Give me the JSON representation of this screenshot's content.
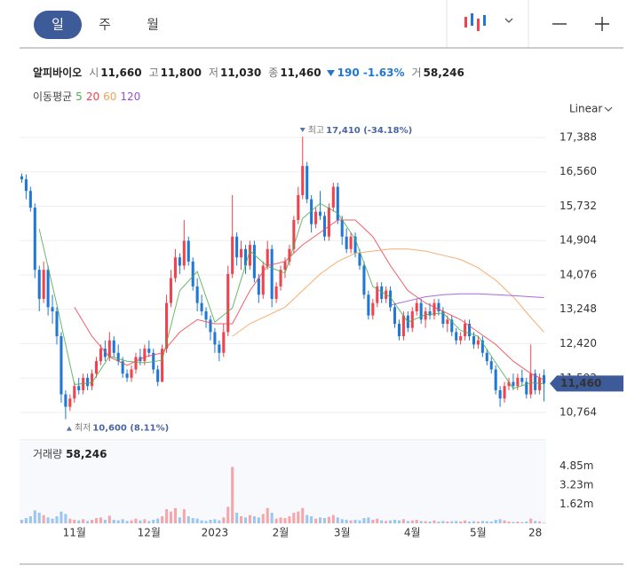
{
  "toolbar": {
    "tabs": [
      "일",
      "주",
      "월"
    ],
    "selected": 0
  },
  "quote": {
    "name": "알피바이오",
    "fields": [
      {
        "label": "시",
        "value": "11,660"
      },
      {
        "label": "고",
        "value": "11,800"
      },
      {
        "label": "저",
        "value": "11,030"
      },
      {
        "label": "종",
        "value": "11,460"
      }
    ],
    "change": "190 -1.63%",
    "volume": {
      "label": "거",
      "value": "58,246"
    }
  },
  "chart_data": {
    "type": "candlestick",
    "ma_label": "이동평균",
    "scale": "Linear",
    "grid": true,
    "up_color": "#f0434e",
    "down_color": "#1f78d6",
    "up_volume_color": "#f4a6aa",
    "down_volume_color": "#9cc6ef",
    "xlim": [
      -0.5,
      119.5
    ],
    "xticks": [
      {
        "value": 12,
        "label": "11월"
      },
      {
        "value": 29,
        "label": "12월"
      },
      {
        "value": 44,
        "label": "2023"
      },
      {
        "value": 59,
        "label": "2월"
      },
      {
        "value": 73,
        "label": "3월"
      },
      {
        "value": 89,
        "label": "4월"
      },
      {
        "value": 104,
        "label": "5월"
      },
      {
        "value": 117,
        "label": "28"
      }
    ],
    "ylim": [
      10230,
      17708
    ],
    "yticks": [
      {
        "value": 17388,
        "label": "17,388"
      },
      {
        "value": 16560,
        "label": "16,560"
      },
      {
        "value": 15732,
        "label": "15,732"
      },
      {
        "value": 14904,
        "label": "14,904"
      },
      {
        "value": 14076,
        "label": "14,076"
      },
      {
        "value": 13248,
        "label": "13,248"
      },
      {
        "value": 12420,
        "label": "12,420"
      },
      {
        "value": 11592,
        "label": "11,592"
      },
      {
        "value": 10764,
        "label": "10,764"
      }
    ],
    "candles": [
      [
        16450,
        16520,
        16300,
        16380
      ],
      [
        16380,
        16500,
        15900,
        16100
      ],
      [
        16100,
        16200,
        15600,
        15700
      ],
      [
        15700,
        15800,
        14000,
        14200
      ],
      [
        14200,
        14300,
        13200,
        13500
      ],
      [
        13500,
        14400,
        13400,
        14200
      ],
      [
        14200,
        14300,
        13100,
        13300
      ],
      [
        13300,
        13600,
        12900,
        13200
      ],
      [
        13200,
        13300,
        12400,
        12600
      ],
      [
        12600,
        12700,
        11000,
        11200
      ],
      [
        11200,
        11300,
        10600,
        10900
      ],
      [
        10900,
        11200,
        10800,
        11100
      ],
      [
        11100,
        11500,
        11000,
        11400
      ],
      [
        11400,
        11600,
        11200,
        11300
      ],
      [
        11300,
        11700,
        11200,
        11600
      ],
      [
        11600,
        11700,
        11300,
        11400
      ],
      [
        11400,
        11800,
        11300,
        11700
      ],
      [
        11700,
        12100,
        11600,
        12000
      ],
      [
        12000,
        12400,
        11900,
        12300
      ],
      [
        12300,
        12500,
        12000,
        12100
      ],
      [
        12100,
        12700,
        12000,
        12500
      ],
      [
        12500,
        12600,
        12100,
        12200
      ],
      [
        12200,
        12400,
        11900,
        12000
      ],
      [
        12000,
        12100,
        11600,
        11700
      ],
      [
        11700,
        11800,
        11500,
        11600
      ],
      [
        11600,
        11900,
        11500,
        11800
      ],
      [
        11800,
        12200,
        11700,
        12100
      ],
      [
        12100,
        12300,
        11900,
        12000
      ],
      [
        12000,
        12400,
        11900,
        12300
      ],
      [
        12300,
        12500,
        12100,
        12200
      ],
      [
        12200,
        12300,
        11700,
        11800
      ],
      [
        11800,
        11900,
        11400,
        11500
      ],
      [
        11500,
        12400,
        11500,
        12300
      ],
      [
        12300,
        13600,
        12200,
        13400
      ],
      [
        13400,
        14200,
        13300,
        14000
      ],
      [
        14000,
        14700,
        13900,
        14500
      ],
      [
        14500,
        14600,
        14100,
        14300
      ],
      [
        14300,
        15400,
        14200,
        14900
      ],
      [
        14900,
        15000,
        14300,
        14400
      ],
      [
        14400,
        14500,
        13700,
        13800
      ],
      [
        13800,
        14000,
        13200,
        13400
      ],
      [
        13400,
        13600,
        13100,
        13200
      ],
      [
        13200,
        13300,
        12800,
        13000
      ],
      [
        13000,
        13100,
        12500,
        12700
      ],
      [
        12700,
        12800,
        12200,
        12400
      ],
      [
        12400,
        12500,
        12000,
        12200
      ],
      [
        12200,
        12900,
        12100,
        12700
      ],
      [
        12700,
        14300,
        12600,
        14100
      ],
      [
        14100,
        16000,
        14000,
        15000
      ],
      [
        15000,
        15100,
        14300,
        14500
      ],
      [
        14500,
        14900,
        14200,
        14700
      ],
      [
        14700,
        14800,
        14100,
        14300
      ],
      [
        14300,
        14900,
        14200,
        14800
      ],
      [
        14800,
        14900,
        13900,
        14000
      ],
      [
        14000,
        14100,
        13400,
        13600
      ],
      [
        13600,
        14400,
        13500,
        14300
      ],
      [
        14300,
        14900,
        14200,
        14700
      ],
      [
        14700,
        14800,
        13300,
        13500
      ],
      [
        13500,
        13900,
        13400,
        13800
      ],
      [
        13800,
        14300,
        13700,
        14200
      ],
      [
        14200,
        14500,
        14000,
        14400
      ],
      [
        14400,
        14800,
        14300,
        14700
      ],
      [
        14700,
        15500,
        14600,
        15400
      ],
      [
        15400,
        16200,
        15300,
        16000
      ],
      [
        16000,
        17410,
        15900,
        16700
      ],
      [
        16700,
        16800,
        15800,
        15900
      ],
      [
        15900,
        16000,
        15100,
        15300
      ],
      [
        15300,
        15700,
        15200,
        15600
      ],
      [
        15600,
        16100,
        15400,
        15500
      ],
      [
        15500,
        15600,
        14900,
        15000
      ],
      [
        15000,
        15800,
        14900,
        15700
      ],
      [
        15700,
        16300,
        15600,
        16200
      ],
      [
        16200,
        16300,
        15300,
        15400
      ],
      [
        15400,
        15500,
        14800,
        15000
      ],
      [
        15000,
        15200,
        14600,
        14700
      ],
      [
        14700,
        15100,
        14600,
        15000
      ],
      [
        15000,
        15100,
        14500,
        14600
      ],
      [
        14600,
        14700,
        14200,
        14300
      ],
      [
        14300,
        14400,
        13500,
        13600
      ],
      [
        13600,
        13700,
        13000,
        13100
      ],
      [
        13100,
        13500,
        13000,
        13400
      ],
      [
        13400,
        13900,
        13300,
        13800
      ],
      [
        13800,
        13900,
        13400,
        13500
      ],
      [
        13500,
        13800,
        13400,
        13700
      ],
      [
        13700,
        13800,
        13200,
        13300
      ],
      [
        13300,
        13400,
        12800,
        12900
      ],
      [
        12900,
        13000,
        12500,
        12600
      ],
      [
        12600,
        13200,
        12500,
        13100
      ],
      [
        13100,
        13200,
        12700,
        12800
      ],
      [
        12800,
        13300,
        12700,
        13200
      ],
      [
        13200,
        13500,
        13100,
        13400
      ],
      [
        13400,
        13500,
        12900,
        13000
      ],
      [
        13000,
        13300,
        12800,
        13200
      ],
      [
        13200,
        13400,
        13000,
        13100
      ],
      [
        13100,
        13500,
        13000,
        13400
      ],
      [
        13400,
        13500,
        13100,
        13200
      ],
      [
        13200,
        13300,
        12800,
        12900
      ],
      [
        12900,
        13100,
        12700,
        13000
      ],
      [
        13000,
        13100,
        12600,
        12700
      ],
      [
        12700,
        12800,
        12400,
        12500
      ],
      [
        12500,
        12700,
        12400,
        12600
      ],
      [
        12600,
        13000,
        12500,
        12900
      ],
      [
        12900,
        13000,
        12500,
        12600
      ],
      [
        12600,
        12700,
        12300,
        12400
      ],
      [
        12400,
        12600,
        12300,
        12500
      ],
      [
        12500,
        12600,
        12100,
        12200
      ],
      [
        12200,
        12300,
        11900,
        12000
      ],
      [
        12000,
        12100,
        11700,
        11800
      ],
      [
        11800,
        11900,
        11200,
        11300
      ],
      [
        11300,
        11400,
        10900,
        11100
      ],
      [
        11100,
        11500,
        11000,
        11400
      ],
      [
        11400,
        11600,
        11300,
        11500
      ],
      [
        11500,
        11700,
        11300,
        11400
      ],
      [
        11400,
        11700,
        11300,
        11600
      ],
      [
        11600,
        11800,
        11400,
        11500
      ],
      [
        11500,
        11600,
        11100,
        11200
      ],
      [
        11200,
        12400,
        11100,
        11700
      ],
      [
        11700,
        11800,
        11200,
        11300
      ],
      [
        11300,
        11700,
        11200,
        11600
      ],
      [
        11660,
        11800,
        11030,
        11460
      ]
    ],
    "moving_averages": [
      {
        "name": "5",
        "color": "#4caf50",
        "x": [
          4,
          8,
          12,
          16,
          20,
          24,
          28,
          32,
          36,
          40,
          44,
          48,
          52,
          56,
          60,
          64,
          68,
          72,
          76,
          80,
          84,
          88,
          92,
          96,
          100,
          104,
          108,
          112,
          116,
          119
        ],
        "values": [
          15180,
          13360,
          11440,
          11480,
          12120,
          12000,
          11960,
          12020,
          13700,
          14160,
          12940,
          13280,
          14660,
          14280,
          14120,
          15440,
          15800,
          15560,
          14940,
          13800,
          13540,
          12940,
          13120,
          13160,
          12740,
          12600,
          11960,
          11340,
          11480,
          11452
        ]
      },
      {
        "name": "20",
        "color": "#f0434e",
        "x": [
          12,
          16,
          20,
          24,
          28,
          32,
          36,
          40,
          44,
          48,
          52,
          56,
          60,
          64,
          68,
          72,
          76,
          80,
          84,
          88,
          92,
          96,
          100,
          104,
          108,
          112,
          116,
          119
        ],
        "values": [
          13300,
          12600,
          12100,
          11900,
          12100,
          12200,
          12700,
          13000,
          12900,
          12900,
          13700,
          14300,
          14400,
          14800,
          15100,
          15400,
          15400,
          15000,
          14300,
          13700,
          13400,
          13200,
          13000,
          12700,
          12400,
          12000,
          11700,
          11550
        ]
      },
      {
        "name": "60",
        "color": "#f5a05a",
        "x": [
          48,
          52,
          56,
          60,
          64,
          68,
          72,
          76,
          80,
          84,
          88,
          92,
          96,
          100,
          104,
          108,
          112,
          116,
          119
        ],
        "values": [
          12600,
          12900,
          13100,
          13300,
          13700,
          14100,
          14400,
          14600,
          14650,
          14700,
          14700,
          14650,
          14550,
          14450,
          14250,
          13950,
          13550,
          13050,
          12700
        ]
      },
      {
        "name": "120",
        "color": "#9a4fd6",
        "x": [
          84,
          88,
          92,
          96,
          100,
          104,
          108,
          112,
          116,
          119
        ],
        "values": [
          13350,
          13450,
          13550,
          13600,
          13620,
          13620,
          13600,
          13580,
          13550,
          13530
        ]
      }
    ],
    "high_label": {
      "label": "최고",
      "text": "17,410 (-34.18%)"
    },
    "low_label": {
      "label": "최저",
      "text": "10,600 (8.11%)"
    },
    "price_tag": {
      "value": 11460,
      "label": "11,460"
    },
    "volume": {
      "title": "거래량",
      "current": "58,246",
      "ylim": [
        0,
        6940000
      ],
      "yticks": [
        {
          "value": 4850000,
          "label": "4.85m"
        },
        {
          "value": 3230000,
          "label": "3.23m"
        },
        {
          "value": 1620000,
          "label": "1.62m"
        }
      ],
      "values": [
        300000,
        450000,
        600000,
        1100000,
        900000,
        700000,
        500000,
        400000,
        600000,
        1000000,
        800000,
        400000,
        300000,
        250000,
        350000,
        200000,
        300000,
        450000,
        500000,
        300000,
        650000,
        300000,
        250000,
        350000,
        200000,
        250000,
        400000,
        250000,
        350000,
        200000,
        300000,
        400000,
        600000,
        1200000,
        1000000,
        1300000,
        500000,
        1200000,
        600000,
        450000,
        400000,
        250000,
        200000,
        300000,
        350000,
        250000,
        500000,
        1400000,
        4800000,
        900000,
        600000,
        500000,
        700000,
        600000,
        500000,
        800000,
        1300000,
        900000,
        400000,
        500000,
        450000,
        600000,
        900000,
        1000000,
        1300000,
        700000,
        600000,
        400000,
        500000,
        450000,
        550000,
        700000,
        500000,
        350000,
        300000,
        250000,
        300000,
        250000,
        450000,
        500000,
        300000,
        400000,
        250000,
        200000,
        250000,
        300000,
        250000,
        350000,
        200000,
        250000,
        300000,
        200000,
        180000,
        150000,
        250000,
        150000,
        200000,
        150000,
        180000,
        200000,
        150000,
        250000,
        150000,
        180000,
        150000,
        200000,
        180000,
        150000,
        300000,
        350000,
        250000,
        150000,
        120000,
        150000,
        100000,
        150000,
        400000,
        200000,
        150000,
        58246
      ]
    }
  }
}
